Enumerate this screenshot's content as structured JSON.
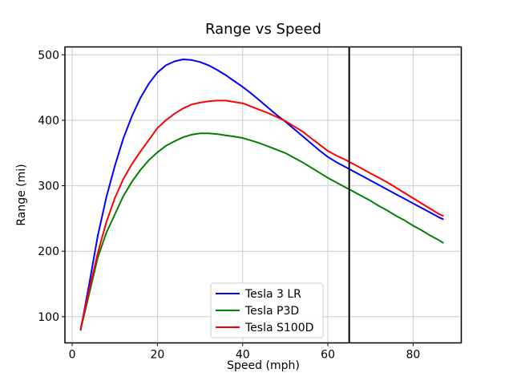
{
  "chart_data": {
    "type": "line",
    "title": "Range vs Speed",
    "xlabel": "Speed (mph)",
    "ylabel": "Range (mi)",
    "xlim": [
      -1.7,
      91.3
    ],
    "ylim": [
      60,
      512
    ],
    "xticks": [
      0,
      20,
      40,
      60,
      80
    ],
    "yticks": [
      100,
      200,
      300,
      400,
      500
    ],
    "grid": true,
    "legend": {
      "location": "lower center",
      "entries": [
        "Tesla 3 LR",
        "Tesla P3D",
        "Tesla S100D"
      ]
    },
    "annotations": [
      {
        "type": "vline",
        "x": 65,
        "color": "#000000",
        "linewidth": 2
      }
    ],
    "colors": {
      "grid": "#cbcbcb",
      "axes": "#000000",
      "background": "#ffffff",
      "blue_series": "#0000ff",
      "green_series": "#008000",
      "red_series": "#ff0000"
    },
    "x": [
      2,
      4,
      6,
      8,
      10,
      12,
      14,
      16,
      18,
      20,
      22,
      24,
      26,
      28,
      30,
      32,
      34,
      36,
      38,
      40,
      42,
      44,
      46,
      48,
      50,
      52,
      54,
      56,
      58,
      60,
      62,
      64,
      66,
      68,
      70,
      72,
      74,
      76,
      78,
      80,
      82,
      84,
      86,
      87
    ],
    "series": [
      {
        "name": "Tesla 3 LR",
        "color": "#0000ff",
        "values": [
          80,
          150,
          223,
          282,
          330,
          372,
          406,
          434,
          456,
          473,
          484,
          490,
          493,
          492,
          489,
          484,
          477,
          469,
          460,
          451,
          441,
          430,
          419,
          408,
          398,
          387,
          376,
          365,
          354,
          344,
          336,
          329,
          322,
          315,
          308,
          301,
          294,
          287,
          280,
          273,
          266,
          259,
          252,
          249
        ]
      },
      {
        "name": "Tesla P3D",
        "color": "#008000",
        "values": [
          81,
          135,
          190,
          228,
          256,
          284,
          306,
          324,
          339,
          351,
          361,
          368,
          374,
          378,
          380,
          380,
          379,
          377,
          375,
          373,
          369,
          365,
          360,
          355,
          350,
          343,
          336,
          328,
          320,
          312,
          305,
          298,
          291,
          284,
          277,
          269,
          262,
          254,
          247,
          239,
          232,
          224,
          217,
          213
        ]
      },
      {
        "name": "Tesla S100D",
        "color": "#ff0000",
        "values": [
          82,
          141,
          197,
          244,
          281,
          310,
          333,
          352,
          370,
          388,
          400,
          410,
          418,
          424,
          427,
          429,
          430,
          430,
          428,
          426,
          421,
          416,
          411,
          405,
          399,
          391,
          383,
          373,
          363,
          353,
          346,
          340,
          333,
          326,
          319,
          312,
          305,
          297,
          289,
          281,
          273,
          265,
          257,
          254
        ]
      }
    ]
  }
}
